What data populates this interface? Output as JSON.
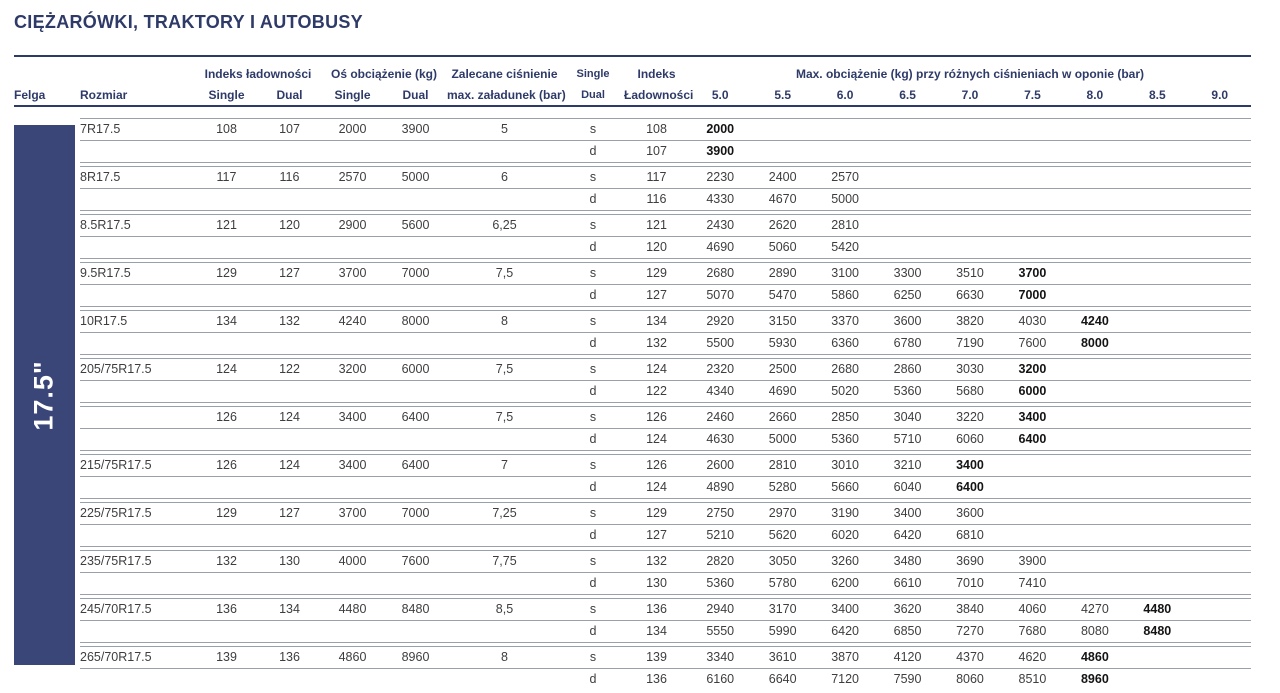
{
  "title": "CIĘŻARÓWKI, TRAKTORY I AUTOBUSY",
  "sidebar_label": "17.5\"",
  "colors": {
    "navy": "#2e3a68",
    "sidebar_bg": "#3b4678",
    "grid_line": "#9aa0aa",
    "body_text": "#3e3e3e"
  },
  "header": {
    "felga": "Felga",
    "rozmiar": "Rozmiar",
    "indeks_ladownosci": "Indeks ładowności",
    "os_obciazenie": "Oś obciążenie (kg)",
    "zalecane_line1": "Zalecane ciśnienie",
    "zalecane_line2": "max. załadunek (bar)",
    "single": "Single",
    "dual": "Dual",
    "indeks2_line1": "Indeks",
    "indeks2_line2": "Ładowności",
    "max_obciazenie": "Max. obciążenie (kg) przy różnych ciśnieniach w oponie (bar)",
    "pressures": [
      "5.0",
      "5.5",
      "6.0",
      "6.5",
      "7.0",
      "7.5",
      "8.0",
      "8.5",
      "9.0"
    ]
  },
  "markers": {
    "s": "s",
    "d": "d"
  },
  "chart_data": {
    "type": "table",
    "rim": "17.5\"",
    "pressure_columns_bar": [
      5.0,
      5.5,
      6.0,
      6.5,
      7.0,
      7.5,
      8.0,
      8.5,
      9.0
    ],
    "rows": [
      {
        "size": "7R17.5",
        "li_single": "108",
        "li_dual": "107",
        "axle_single": "2000",
        "axle_dual": "3900",
        "pressure": "5",
        "s": {
          "li": "108",
          "loads": [
            "2000"
          ],
          "bold_last": true
        },
        "d": {
          "li": "107",
          "loads": [
            "3900"
          ],
          "bold_last": true
        }
      },
      {
        "size": "8R17.5",
        "li_single": "117",
        "li_dual": "116",
        "axle_single": "2570",
        "axle_dual": "5000",
        "pressure": "6",
        "s": {
          "li": "117",
          "loads": [
            "2230",
            "2400",
            "2570"
          ],
          "bold_last": false
        },
        "d": {
          "li": "116",
          "loads": [
            "4330",
            "4670",
            "5000"
          ],
          "bold_last": false
        }
      },
      {
        "size": "8.5R17.5",
        "li_single": "121",
        "li_dual": "120",
        "axle_single": "2900",
        "axle_dual": "5600",
        "pressure": "6,25",
        "s": {
          "li": "121",
          "loads": [
            "2430",
            "2620",
            "2810"
          ],
          "bold_last": false
        },
        "d": {
          "li": "120",
          "loads": [
            "4690",
            "5060",
            "5420"
          ],
          "bold_last": false
        }
      },
      {
        "size": "9.5R17.5",
        "li_single": "129",
        "li_dual": "127",
        "axle_single": "3700",
        "axle_dual": "7000",
        "pressure": "7,5",
        "s": {
          "li": "129",
          "loads": [
            "2680",
            "2890",
            "3100",
            "3300",
            "3510",
            "3700"
          ],
          "bold_last": true
        },
        "d": {
          "li": "127",
          "loads": [
            "5070",
            "5470",
            "5860",
            "6250",
            "6630",
            "7000"
          ],
          "bold_last": true
        }
      },
      {
        "size": "10R17.5",
        "li_single": "134",
        "li_dual": "132",
        "axle_single": "4240",
        "axle_dual": "8000",
        "pressure": "8",
        "s": {
          "li": "134",
          "loads": [
            "2920",
            "3150",
            "3370",
            "3600",
            "3820",
            "4030",
            "4240"
          ],
          "bold_last": true
        },
        "d": {
          "li": "132",
          "loads": [
            "5500",
            "5930",
            "6360",
            "6780",
            "7190",
            "7600",
            "8000"
          ],
          "bold_last": true
        }
      },
      {
        "size": "205/75R17.5",
        "li_single": "124",
        "li_dual": "122",
        "axle_single": "3200",
        "axle_dual": "6000",
        "pressure": "7,5",
        "s": {
          "li": "124",
          "loads": [
            "2320",
            "2500",
            "2680",
            "2860",
            "3030",
            "3200"
          ],
          "bold_last": true
        },
        "d": {
          "li": "122",
          "loads": [
            "4340",
            "4690",
            "5020",
            "5360",
            "5680",
            "6000"
          ],
          "bold_last": true
        }
      },
      {
        "size": "",
        "li_single": "126",
        "li_dual": "124",
        "axle_single": "3400",
        "axle_dual": "6400",
        "pressure": "7,5",
        "s": {
          "li": "126",
          "loads": [
            "2460",
            "2660",
            "2850",
            "3040",
            "3220",
            "3400"
          ],
          "bold_last": true
        },
        "d": {
          "li": "124",
          "loads": [
            "4630",
            "5000",
            "5360",
            "5710",
            "6060",
            "6400"
          ],
          "bold_last": true
        }
      },
      {
        "size": "215/75R17.5",
        "li_single": "126",
        "li_dual": "124",
        "axle_single": "3400",
        "axle_dual": "6400",
        "pressure": "7",
        "s": {
          "li": "126",
          "loads": [
            "2600",
            "2810",
            "3010",
            "3210",
            "3400"
          ],
          "bold_last": true
        },
        "d": {
          "li": "124",
          "loads": [
            "4890",
            "5280",
            "5660",
            "6040",
            "6400"
          ],
          "bold_last": true
        }
      },
      {
        "size": "225/75R17.5",
        "li_single": "129",
        "li_dual": "127",
        "axle_single": "3700",
        "axle_dual": "7000",
        "pressure": "7,25",
        "s": {
          "li": "129",
          "loads": [
            "2750",
            "2970",
            "3190",
            "3400",
            "3600"
          ],
          "bold_last": false
        },
        "d": {
          "li": "127",
          "loads": [
            "5210",
            "5620",
            "6020",
            "6420",
            "6810"
          ],
          "bold_last": false
        }
      },
      {
        "size": "235/75R17.5",
        "li_single": "132",
        "li_dual": "130",
        "axle_single": "4000",
        "axle_dual": "7600",
        "pressure": "7,75",
        "s": {
          "li": "132",
          "loads": [
            "2820",
            "3050",
            "3260",
            "3480",
            "3690",
            "3900"
          ],
          "bold_last": false
        },
        "d": {
          "li": "130",
          "loads": [
            "5360",
            "5780",
            "6200",
            "6610",
            "7010",
            "7410"
          ],
          "bold_last": false
        }
      },
      {
        "size": "245/70R17.5",
        "li_single": "136",
        "li_dual": "134",
        "axle_single": "4480",
        "axle_dual": "8480",
        "pressure": "8,5",
        "s": {
          "li": "136",
          "loads": [
            "2940",
            "3170",
            "3400",
            "3620",
            "3840",
            "4060",
            "4270",
            "4480"
          ],
          "bold_last": true
        },
        "d": {
          "li": "134",
          "loads": [
            "5550",
            "5990",
            "6420",
            "6850",
            "7270",
            "7680",
            "8080",
            "8480"
          ],
          "bold_last": true
        }
      },
      {
        "size": "265/70R17.5",
        "li_single": "139",
        "li_dual": "136",
        "axle_single": "4860",
        "axle_dual": "8960",
        "pressure": "8",
        "s": {
          "li": "139",
          "loads": [
            "3340",
            "3610",
            "3870",
            "4120",
            "4370",
            "4620",
            "4860"
          ],
          "bold_last": true
        },
        "d": {
          "li": "136",
          "loads": [
            "6160",
            "6640",
            "7120",
            "7590",
            "8060",
            "8510",
            "8960"
          ],
          "bold_last": true
        }
      }
    ]
  }
}
